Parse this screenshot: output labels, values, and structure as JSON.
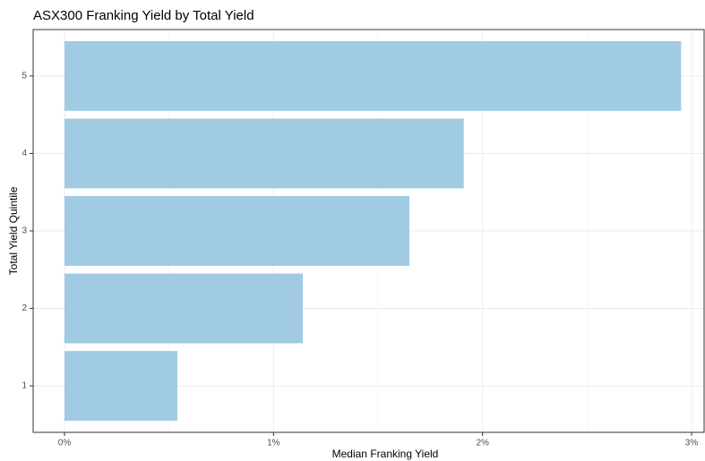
{
  "chart_data": {
    "type": "bar",
    "orientation": "horizontal",
    "title": "ASX300 Franking Yield by Total Yield",
    "x_label": "Median Franking Yield",
    "y_label": "Total Yield Quintile",
    "categories": [
      "1",
      "2",
      "3",
      "4",
      "5"
    ],
    "values": [
      0.54,
      1.14,
      1.65,
      1.91,
      2.95
    ],
    "color": "#a0cbe2",
    "xlim": [
      -0.15,
      3.06
    ],
    "xticks": [
      {
        "value": 0,
        "label": "0%"
      },
      {
        "value": 1,
        "label": "1%"
      },
      {
        "value": 2,
        "label": "2%"
      },
      {
        "value": 3,
        "label": "3%"
      }
    ],
    "minor_xticks": [
      0.5,
      1.5,
      2.5
    ],
    "grid": true
  }
}
